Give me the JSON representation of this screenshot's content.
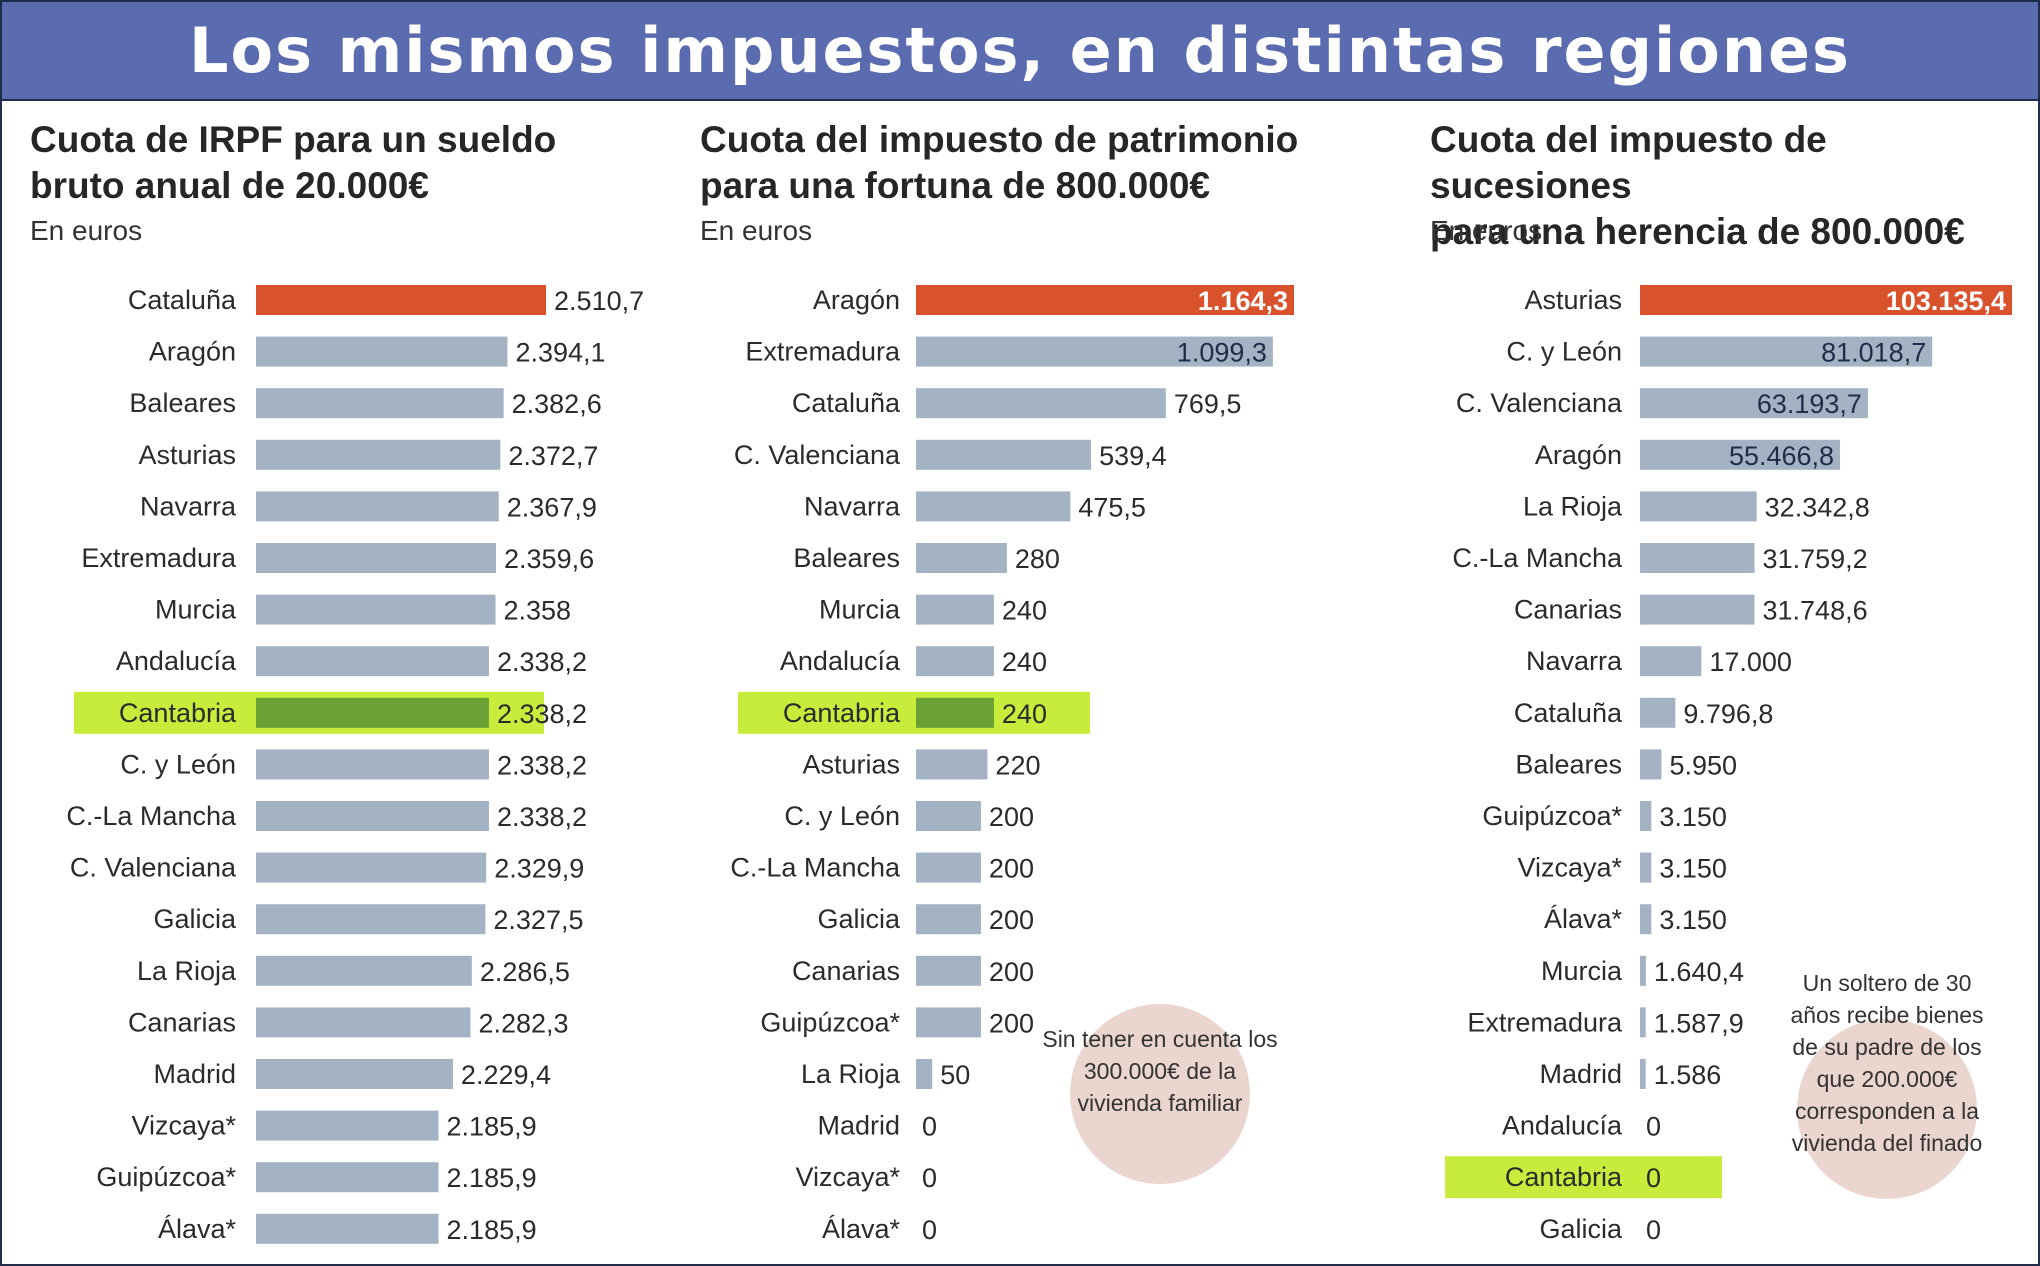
{
  "title": "Los mismos impuestos, en distintas regiones",
  "colors": {
    "banner": "#5b6bb0",
    "highlight_bar": "#d9522b",
    "normal_bar": "#a3b3c3",
    "cantabria_band": "#c7ec3b",
    "cantabria_bar": "#6aa034",
    "note_circle": "#ead5cf"
  },
  "chart_data": [
    {
      "type": "bar",
      "orientation": "horizontal",
      "title": "Cuota de IRPF para un sueldo\nbruto anual de 20.000€",
      "unit": "En euros",
      "highlight": "Cantabria",
      "categories": [
        "Cataluña",
        "Aragón",
        "Baleares",
        "Asturias",
        "Navarra",
        "Extremadura",
        "Murcia",
        "Andalucía",
        "Cantabria",
        "C. y León",
        "C.-La Mancha",
        "C. Valenciana",
        "Galicia",
        "La Rioja",
        "Canarias",
        "Madrid",
        "Vizcaya*",
        "Guipúzcoa*",
        "Álava*"
      ],
      "values": [
        2510.7,
        2394.1,
        2382.6,
        2372.7,
        2367.9,
        2359.6,
        2358,
        2338.2,
        2338.2,
        2338.2,
        2338.2,
        2329.9,
        2327.5,
        2286.5,
        2282.3,
        2229.4,
        2185.9,
        2185.9,
        2185.9
      ],
      "labels": [
        "2.510,7",
        "2.394,1",
        "2.382,6",
        "2.372,7",
        "2.367,9",
        "2.359,6",
        "2.358",
        "2.338,2",
        "2.338,2",
        "2.338,2",
        "2.338,2",
        "2.329,9",
        "2.327,5",
        "2.286,5",
        "2.282,3",
        "2.229,4",
        "2.185,9",
        "2.185,9",
        "2.185,9"
      ]
    },
    {
      "type": "bar",
      "orientation": "horizontal",
      "title": "Cuota del impuesto de patrimonio\npara una fortuna de 800.000€",
      "unit": "En euros",
      "highlight": "Cantabria",
      "categories": [
        "Aragón",
        "Extremadura",
        "Cataluña",
        "C. Valenciana",
        "Navarra",
        "Baleares",
        "Murcia",
        "Andalucía",
        "Cantabria",
        "Asturias",
        "C. y León",
        "C.-La Mancha",
        "Galicia",
        "Canarias",
        "Guipúzcoa*",
        "La Rioja",
        "Madrid",
        "Vizcaya*",
        "Álava*"
      ],
      "values": [
        1164.3,
        1099.3,
        769.5,
        539.4,
        475.5,
        280,
        240,
        240,
        240,
        220,
        200,
        200,
        200,
        200,
        200,
        50,
        0,
        0,
        0
      ],
      "labels": [
        "1.164,3",
        "1.099,3",
        "769,5",
        "539,4",
        "475,5",
        "280",
        "240",
        "240",
        "240",
        "220",
        "200",
        "200",
        "200",
        "200",
        "200",
        "50",
        "0",
        "0",
        "0"
      ],
      "note": "Sin tener en cuenta los 300.000€ de la vivienda familiar"
    },
    {
      "type": "bar",
      "orientation": "horizontal",
      "title": "Cuota del impuesto de sucesiones\npara una herencia de 800.000€",
      "unit": "En euros",
      "highlight": "Cantabria",
      "categories": [
        "Asturias",
        "C. y León",
        "C. Valenciana",
        "Aragón",
        "La Rioja",
        "C.-La Mancha",
        "Canarias",
        "Navarra",
        "Cataluña",
        "Baleares",
        "Guipúzcoa*",
        "Vizcaya*",
        "Álava*",
        "Murcia",
        "Extremadura",
        "Madrid",
        "Andalucía",
        "Cantabria",
        "Galicia"
      ],
      "values": [
        103135.4,
        81018.7,
        63193.7,
        55466.8,
        32342.8,
        31759.2,
        31748.6,
        17000,
        9796.8,
        5950,
        3150,
        3150,
        3150,
        1640.4,
        1587.9,
        1586,
        0,
        0,
        0
      ],
      "labels": [
        "103.135,4",
        "81.018,7",
        "63.193,7",
        "55.466,8",
        "32.342,8",
        "31.759,2",
        "31.748,6",
        "17.000",
        "9.796,8",
        "5.950",
        "3.150",
        "3.150",
        "3.150",
        "1.640,4",
        "1.587,9",
        "1.586",
        "0",
        "0",
        "0"
      ],
      "note": "Un soltero de 30 años recibe bienes de su padre de los que 200.000€ corresponden a la vivienda del finado"
    }
  ]
}
